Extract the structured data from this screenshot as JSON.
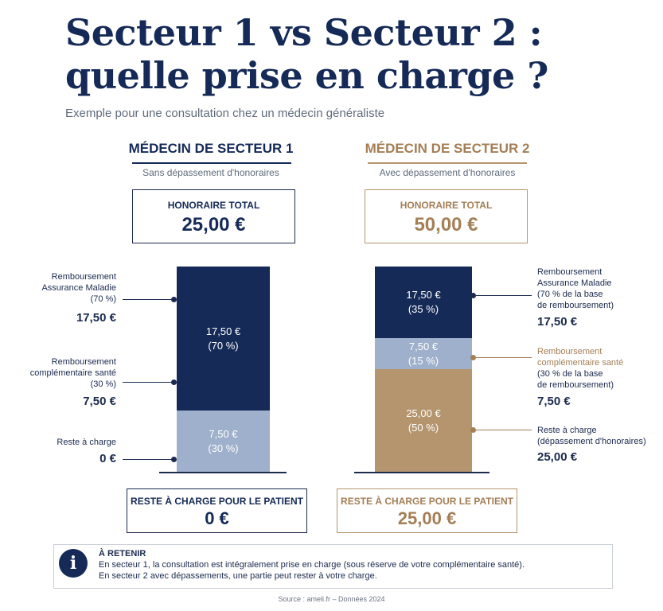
{
  "title_line1": "Secteur 1 vs Secteur 2 :",
  "title_line2": "quelle prise en charge ?",
  "subtitle": "Exemple pour une consultation chez un médecin généraliste",
  "colors": {
    "navy": "#152a57",
    "light_blue": "#9eb0cb",
    "tan": "#b4956e",
    "tan_text": "#a47e55"
  },
  "secteur1": {
    "heading": "MÉDECIN DE SECTEUR 1",
    "subheading": "Sans dépassement d'honoraires",
    "total_label": "HONORAIRE TOTAL",
    "total_value": "25,00 €",
    "annotations": [
      {
        "lines": [
          "Remboursement",
          "Assurance Maladie",
          "(70 %)"
        ],
        "value": "17,50 €"
      },
      {
        "lines": [
          "Remboursement",
          "complémentaire santé",
          "(30 %)"
        ],
        "value": "7,50 €"
      },
      {
        "lines": [
          "Reste à charge"
        ],
        "value": "0 €"
      }
    ],
    "bottom_label": "RESTE À CHARGE POUR LE PATIENT",
    "bottom_value": "0 €"
  },
  "secteur2": {
    "heading": "MÉDECIN DE SECTEUR 2",
    "subheading": "Avec dépassement d'honoraires",
    "total_label": "HONORAIRE TOTAL",
    "total_value": "50,00 €",
    "annotations": [
      {
        "lines": [
          "Remboursement",
          "Assurance Maladie",
          "(70 % de la base",
          "de remboursement)"
        ],
        "value": "17,50 €"
      },
      {
        "lines": [
          "Remboursement",
          "complémentaire santé",
          "(30 % de la base",
          "de remboursement)"
        ],
        "value": "7,50 €"
      },
      {
        "lines": [
          "Reste à charge",
          "(dépassement d'honoraires)"
        ],
        "value": "25,00 €"
      }
    ],
    "bottom_label": "RESTE À CHARGE POUR LE PATIENT",
    "bottom_value": "25,00 €"
  },
  "chart_data": [
    {
      "type": "bar",
      "stacked": true,
      "title": "MÉDECIN DE SECTEUR 1",
      "categories": [
        "Secteur 1"
      ],
      "series": [
        {
          "name": "Remboursement Assurance Maladie",
          "values": [
            17.5
          ],
          "label": "17,50 €",
          "pct": "(70 %)",
          "color": "#152a57"
        },
        {
          "name": "Remboursement complémentaire santé",
          "values": [
            7.5
          ],
          "label": "7,50 €",
          "pct": "(30 %)",
          "color": "#9eb0cb"
        },
        {
          "name": "Reste à charge",
          "values": [
            0
          ],
          "label": "",
          "pct": "",
          "color": "#b4956e"
        }
      ],
      "total": 25
    },
    {
      "type": "bar",
      "stacked": true,
      "title": "MÉDECIN DE SECTEUR 2",
      "categories": [
        "Secteur 2"
      ],
      "series": [
        {
          "name": "Remboursement Assurance Maladie",
          "values": [
            17.5
          ],
          "label": "17,50 €",
          "pct": "(35 %)",
          "color": "#152a57"
        },
        {
          "name": "Remboursement complémentaire santé",
          "values": [
            7.5
          ],
          "label": "7,50 €",
          "pct": "(15 %)",
          "color": "#9eb0cb"
        },
        {
          "name": "Reste à charge",
          "values": [
            25
          ],
          "label": "25,00 €",
          "pct": "(50 %)",
          "color": "#b4956e"
        }
      ],
      "total": 50
    }
  ],
  "retenir": {
    "icon": "info-icon",
    "heading": "À RETENIR",
    "line1": "En secteur 1, la consultation est intégralement prise en charge (sous réserve de votre complémentaire santé).",
    "line2": "En secteur 2 avec dépassements, une partie peut rester à votre charge."
  },
  "source": "Source : ameli.fr – Données 2024"
}
